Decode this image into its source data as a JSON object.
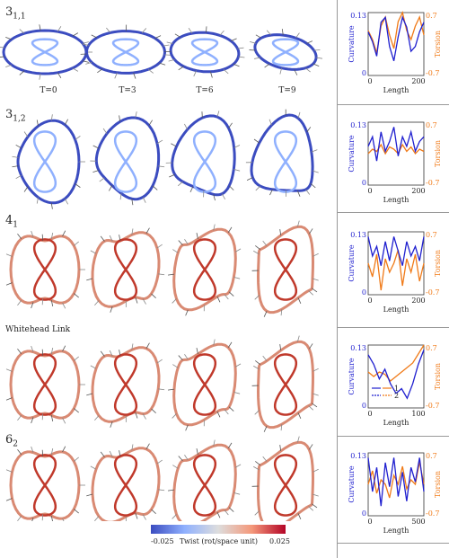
{
  "panels": [
    {
      "label_main": "3",
      "label_sub": "1,1",
      "times": [
        "T=0",
        "T=3",
        "T=6",
        "T=9"
      ]
    },
    {
      "label_main": "3",
      "label_sub": "1,2",
      "times": []
    },
    {
      "label_main": "4",
      "label_sub": "1",
      "times": []
    },
    {
      "label_main": "Whitehead Link",
      "label_sub": "",
      "times": []
    },
    {
      "label_main": "6",
      "label_sub": "2",
      "times": []
    }
  ],
  "colorbar": {
    "min_label": "-0.025",
    "title": "Twist (rot/space unit)",
    "max_label": "0.025"
  },
  "colors": {
    "curvature": "#1f1fcf",
    "torsion": "#f07a18",
    "knot_blue": "#3b4cc0",
    "knot_red": "#c0392b"
  },
  "chart_data": [
    {
      "type": "line",
      "ylabel_left": "Curvature",
      "ylabel_right": "Torsion",
      "xlabel": "Length",
      "yleft_ticks": [
        "0",
        "0.13"
      ],
      "yright_ticks": [
        "-0.7",
        "0.7"
      ],
      "xticks": [
        "0",
        "200"
      ],
      "xlim": [
        0,
        230
      ],
      "series": [
        {
          "name": "Curvature",
          "values": [
            0.09,
            0.07,
            0.04,
            0.11,
            0.12,
            0.06,
            0.03,
            0.08,
            0.12,
            0.1,
            0.05,
            0.06,
            0.09,
            0.11
          ]
        },
        {
          "name": "Torsion",
          "values": [
            0.3,
            0.1,
            -0.2,
            0.4,
            0.6,
            0.2,
            -0.1,
            0.5,
            0.7,
            0.3,
            0.1,
            0.4,
            0.6,
            0.2
          ]
        }
      ]
    },
    {
      "type": "line",
      "ylabel_left": "Curvature",
      "ylabel_right": "Torsion",
      "xlabel": "Length",
      "yleft_ticks": [
        "0",
        "0.13"
      ],
      "yright_ticks": [
        "-0.7",
        "0.7"
      ],
      "xticks": [
        "0",
        "200"
      ],
      "xlim": [
        0,
        230
      ],
      "series": [
        {
          "name": "Curvature",
          "values": [
            0.08,
            0.1,
            0.05,
            0.11,
            0.07,
            0.09,
            0.12,
            0.06,
            0.1,
            0.08,
            0.11,
            0.07,
            0.09,
            0.1
          ]
        },
        {
          "name": "Torsion",
          "values": [
            0.0,
            0.1,
            0.05,
            0.2,
            0.0,
            0.15,
            0.1,
            0.0,
            0.2,
            0.05,
            0.15,
            0.0,
            0.1,
            0.05
          ]
        }
      ]
    },
    {
      "type": "line",
      "ylabel_left": "Curvature",
      "ylabel_right": "Torsion",
      "xlabel": "Length",
      "yleft_ticks": [
        "0",
        "0.13"
      ],
      "yright_ticks": [
        "-0.7",
        "0.7"
      ],
      "xticks": [
        "0",
        "200"
      ],
      "xlim": [
        0,
        230
      ],
      "series": [
        {
          "name": "Curvature",
          "values": [
            0.12,
            0.08,
            0.1,
            0.06,
            0.11,
            0.07,
            0.12,
            0.09,
            0.06,
            0.11,
            0.08,
            0.1,
            0.07,
            0.12
          ]
        },
        {
          "name": "Torsion",
          "values": [
            0.0,
            -0.3,
            0.2,
            -0.6,
            0.1,
            -0.2,
            0.0,
            0.3,
            -0.5,
            0.1,
            -0.2,
            0.2,
            -0.4,
            0.0
          ]
        }
      ]
    },
    {
      "type": "line",
      "ylabel_left": "Curvature",
      "ylabel_right": "Torsion",
      "xlabel": "Length",
      "yleft_ticks": [
        "0",
        "0.13"
      ],
      "yright_ticks": [
        "-0.7",
        "0.7"
      ],
      "xticks": [
        "0",
        "100"
      ],
      "xlim": [
        0,
        160
      ],
      "legend": [
        "1",
        "2"
      ],
      "series": [
        {
          "name": "Curvature",
          "values": [
            0.11,
            0.09,
            0.06,
            0.08,
            0.05,
            0.03,
            0.04,
            0.02,
            0.05,
            0.09,
            0.12
          ]
        },
        {
          "name": "Torsion",
          "values": [
            0.1,
            0.0,
            0.1,
            0.05,
            -0.1,
            0.0,
            0.1,
            0.2,
            0.3,
            0.5,
            0.7
          ]
        }
      ]
    },
    {
      "type": "line",
      "ylabel_left": "Curvature",
      "ylabel_right": "Torsion",
      "xlabel": "Length",
      "yleft_ticks": [
        "0",
        "0.13"
      ],
      "yright_ticks": [
        "-0.7",
        "0.7"
      ],
      "xticks": [
        "0",
        "500"
      ],
      "xlim": [
        0,
        560
      ],
      "series": [
        {
          "name": "Curvature",
          "values": [
            0.12,
            0.05,
            0.1,
            0.02,
            0.11,
            0.06,
            0.12,
            0.04,
            0.09,
            0.03,
            0.1,
            0.07,
            0.12,
            0.05
          ]
        },
        {
          "name": "Torsion",
          "values": [
            0.0,
            0.3,
            -0.2,
            0.1,
            0.0,
            -0.3,
            0.2,
            0.0,
            0.4,
            -0.1,
            0.1,
            0.0,
            0.5,
            0.0
          ]
        }
      ]
    }
  ]
}
